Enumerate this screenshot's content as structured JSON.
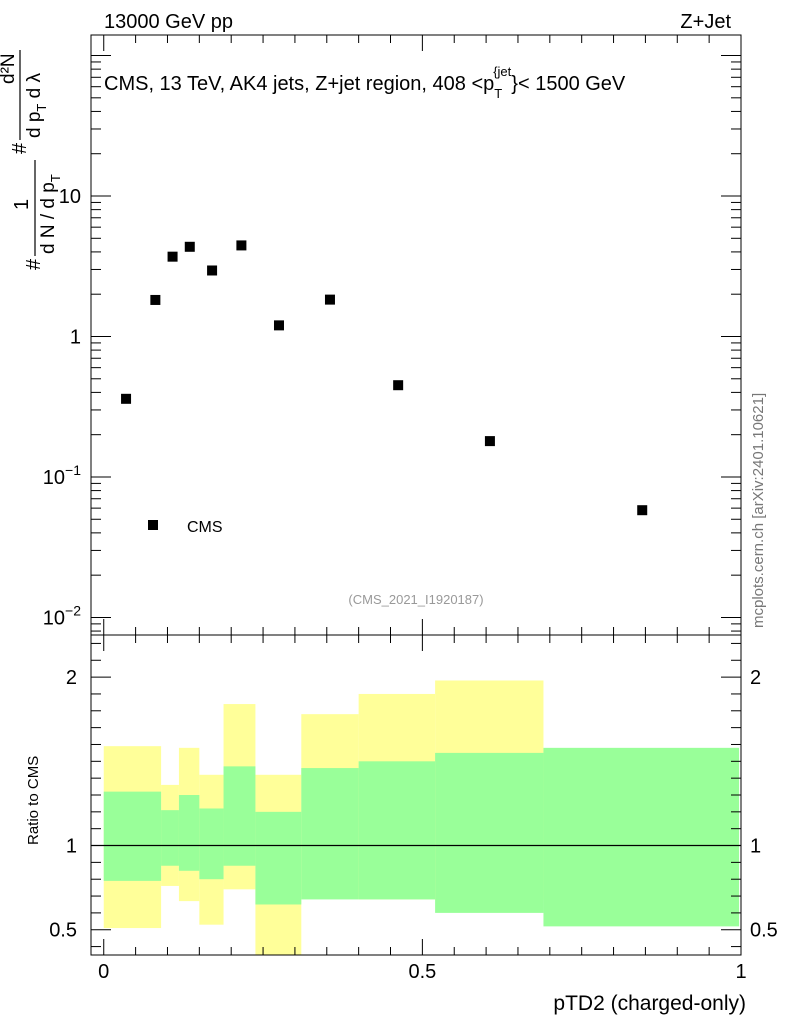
{
  "header": {
    "left": "13000 GeV pp",
    "right": "Z+Jet"
  },
  "watermark": "mcplots.cern.ch [arXiv:2401.10621]",
  "analysis_id": "(CMS_2021_I1920187)",
  "chart_data": [
    {
      "type": "scatter",
      "title": "CMS, 13 TeV, AK4 jets, Z+jet region, 408 <p_T^{jet}< 1500 GeV",
      "title_parts": {
        "main": "CMS, 13 TeV, AK4 jets, Z+jet region, 408 <p",
        "sub": "T",
        "sup": "{jet",
        "close": "}",
        "tail": "< 1500 GeV"
      },
      "ylabel": "1/(dN/dp_T) d²N/(dp_T dλ)",
      "ylabel_parts": {
        "hash": "#",
        "one": "1",
        "den_a": "d N / d p",
        "den_sub": "T",
        "num_top": "d²N",
        "num_a": "d p",
        "num_sub": "T",
        "num_b": " d λ"
      },
      "yscale": "log",
      "ylim": [
        0.0075,
        140
      ],
      "y_tick_labels": [
        {
          "value": 10,
          "label": "10"
        },
        {
          "value": 1,
          "label": "1"
        },
        {
          "value": 0.1,
          "label": "10",
          "exp": "−1"
        },
        {
          "value": 0.01,
          "label": "10",
          "exp": "−2"
        }
      ],
      "legend": {
        "position": "bottom-left",
        "entries": [
          "CMS"
        ]
      },
      "series": [
        {
          "name": "CMS",
          "x": [
            0.035,
            0.081,
            0.108,
            0.135,
            0.17,
            0.216,
            0.275,
            0.355,
            0.462,
            0.606,
            0.845
          ],
          "y": [
            0.36,
            1.82,
            3.7,
            4.35,
            2.95,
            4.45,
            1.2,
            1.83,
            0.45,
            0.18,
            0.058
          ]
        }
      ]
    },
    {
      "type": "area",
      "ylabel": "Ratio to CMS",
      "xlabel": "pTD2 (charged-only)",
      "xlim": [
        -0.02,
        1.0
      ],
      "ylim": [
        0.35,
        2.25
      ],
      "x_ticks": [
        0,
        0.5,
        1
      ],
      "x_tick_labels": [
        "0",
        "0.5",
        "1"
      ],
      "y_ticks": [
        0.5,
        1,
        2
      ],
      "y_tick_labels": [
        "0.5",
        "1",
        "2"
      ],
      "reference_line": 1,
      "bins": [
        0.0,
        0.09,
        0.118,
        0.15,
        0.188,
        0.238,
        0.31,
        0.4,
        0.52,
        0.69,
        0.997
      ],
      "outer_band": {
        "color": "#ffff99",
        "low": [
          0.51,
          0.76,
          0.67,
          0.53,
          0.74,
          0.0,
          0.7,
          0.68,
          0.68,
          0.0
        ],
        "high": [
          1.59,
          1.36,
          1.58,
          1.42,
          1.84,
          1.42,
          1.78,
          1.9,
          1.98,
          0.0
        ]
      },
      "inner_band": {
        "color": "#99ff99",
        "low": [
          0.79,
          0.88,
          0.85,
          0.8,
          0.88,
          0.65,
          0.68,
          0.68,
          0.6,
          0.52
        ],
        "high": [
          1.32,
          1.21,
          1.3,
          1.22,
          1.47,
          1.2,
          1.46,
          1.5,
          1.55,
          1.58
        ]
      }
    }
  ]
}
